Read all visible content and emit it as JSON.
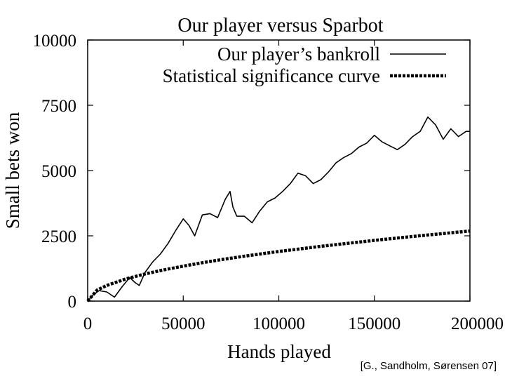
{
  "citation": "[G., Sandholm, Sørensen 07]",
  "chart_data": {
    "type": "line",
    "title": "Our player versus Sparbot",
    "xlabel": "Hands played",
    "ylabel": "Small bets won",
    "xlim": [
      0,
      200000
    ],
    "ylim": [
      0,
      10000
    ],
    "xticks": [
      "0",
      "50000",
      "100000",
      "150000",
      "200000"
    ],
    "yticks": [
      "0",
      "2500",
      "5000",
      "7500",
      "10000"
    ],
    "grid": false,
    "legend_position": "top-right",
    "colors": {
      "bankroll": "#000000",
      "significance": "#000000"
    },
    "series": [
      {
        "name": "Our player’s bankroll",
        "style": "solid",
        "x": [
          0,
          3000,
          6000,
          10000,
          14000,
          18000,
          22000,
          25000,
          27000,
          30000,
          34000,
          38000,
          42000,
          46000,
          50000,
          53000,
          56000,
          60000,
          64000,
          68000,
          72000,
          74500,
          76000,
          78000,
          82000,
          86000,
          90000,
          94000,
          98000,
          102000,
          106000,
          110000,
          114000,
          118000,
          122000,
          126000,
          130000,
          134000,
          138000,
          142000,
          146000,
          150000,
          154000,
          158000,
          162000,
          166000,
          170000,
          174000,
          178000,
          182000,
          186000,
          190000,
          194000,
          198000,
          200000
        ],
        "y": [
          0,
          250,
          400,
          350,
          150,
          550,
          900,
          700,
          600,
          1100,
          1500,
          1800,
          2200,
          2700,
          3150,
          2900,
          2500,
          3300,
          3350,
          3200,
          3900,
          4200,
          3600,
          3250,
          3250,
          3000,
          3450,
          3800,
          3950,
          4200,
          4500,
          4900,
          4800,
          4500,
          4650,
          4950,
          5300,
          5500,
          5650,
          5900,
          6050,
          6350,
          6100,
          5950,
          5800,
          6000,
          6300,
          6500,
          7050,
          6750,
          6200,
          6600,
          6300,
          6500,
          6500
        ]
      },
      {
        "name": "Statistical significance curve",
        "style": "dashed",
        "x": [
          0,
          5000,
          10000,
          20000,
          30000,
          40000,
          50000,
          60000,
          70000,
          80000,
          90000,
          100000,
          110000,
          120000,
          130000,
          140000,
          150000,
          160000,
          170000,
          180000,
          190000,
          200000
        ],
        "y": [
          0,
          425,
          600,
          850,
          1040,
          1200,
          1340,
          1470,
          1590,
          1700,
          1800,
          1900,
          1990,
          2080,
          2165,
          2245,
          2325,
          2400,
          2475,
          2545,
          2615,
          2685
        ]
      }
    ]
  }
}
